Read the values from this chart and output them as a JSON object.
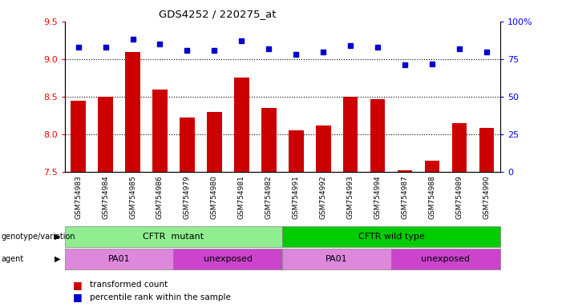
{
  "title": "GDS4252 / 220275_at",
  "samples": [
    "GSM754983",
    "GSM754984",
    "GSM754985",
    "GSM754986",
    "GSM754979",
    "GSM754980",
    "GSM754981",
    "GSM754982",
    "GSM754991",
    "GSM754992",
    "GSM754993",
    "GSM754994",
    "GSM754987",
    "GSM754988",
    "GSM754989",
    "GSM754990"
  ],
  "bar_values": [
    8.45,
    8.5,
    9.1,
    8.6,
    8.22,
    8.3,
    8.75,
    8.35,
    8.05,
    8.12,
    8.5,
    8.47,
    7.52,
    7.65,
    8.15,
    8.08
  ],
  "percentile_values": [
    83,
    83,
    88,
    85,
    81,
    81,
    87,
    82,
    78,
    80,
    84,
    83,
    71,
    72,
    82,
    80
  ],
  "bar_color": "#cc0000",
  "dot_color": "#0000cc",
  "ylim_left": [
    7.5,
    9.5
  ],
  "ylim_right": [
    0,
    100
  ],
  "yticks_left": [
    7.5,
    8.0,
    8.5,
    9.0,
    9.5
  ],
  "yticks_right": [
    0,
    25,
    50,
    75,
    100
  ],
  "grid_vals": [
    8.0,
    8.5,
    9.0
  ],
  "genotype_groups": [
    {
      "label": "CFTR  mutant",
      "start": 0,
      "end": 8,
      "color": "#90ee90"
    },
    {
      "label": "CFTR wild type",
      "start": 8,
      "end": 16,
      "color": "#00cc00"
    }
  ],
  "agent_groups": [
    {
      "label": "PA01",
      "start": 0,
      "end": 4,
      "color": "#dd88dd"
    },
    {
      "label": "unexposed",
      "start": 4,
      "end": 8,
      "color": "#cc44cc"
    },
    {
      "label": "PA01",
      "start": 8,
      "end": 12,
      "color": "#dd88dd"
    },
    {
      "label": "unexposed",
      "start": 12,
      "end": 16,
      "color": "#cc44cc"
    }
  ],
  "legend_bar_label": "transformed count",
  "legend_dot_label": "percentile rank within the sample"
}
